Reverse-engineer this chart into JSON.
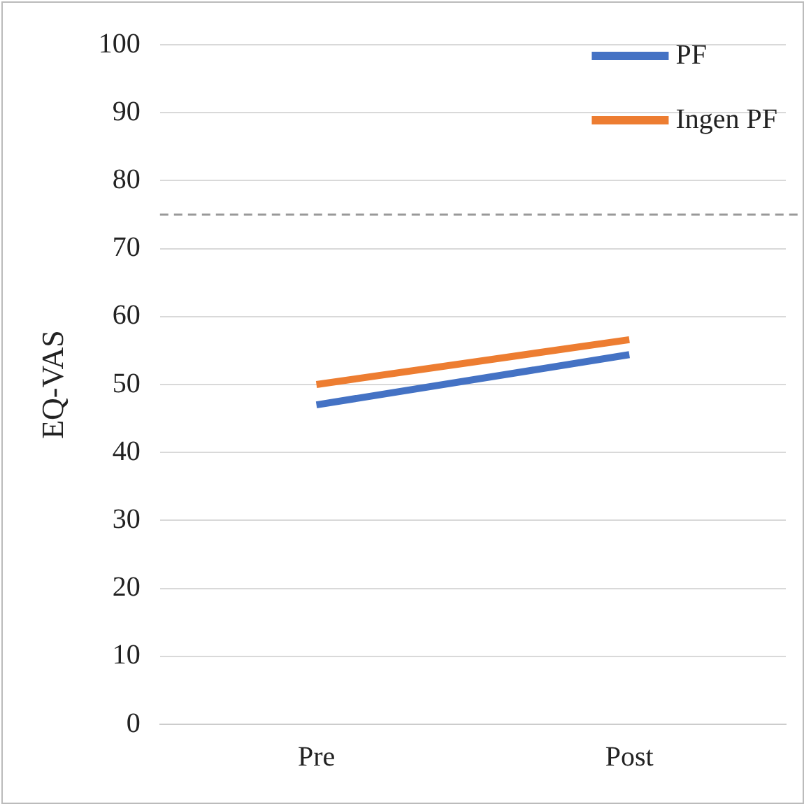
{
  "chart_data": {
    "type": "line",
    "ylabel": "EQ-VAS",
    "categories": [
      "Pre",
      "Post"
    ],
    "series": [
      {
        "name": "PF",
        "color": "#4472c4",
        "values": [
          47,
          54.4
        ]
      },
      {
        "name": "Ingen PF",
        "color": "#ed7d31",
        "values": [
          50,
          56.6
        ]
      }
    ],
    "ylim": [
      0,
      100
    ],
    "yticks": [
      0,
      10,
      20,
      30,
      40,
      50,
      60,
      70,
      80,
      90,
      100
    ],
    "grid": "y",
    "legend": "top right",
    "marker": "none",
    "line_style": "solid",
    "ref_lines": [
      {
        "axis": "y",
        "value": 75,
        "color": "#999999",
        "line_style": "dashed"
      }
    ]
  }
}
